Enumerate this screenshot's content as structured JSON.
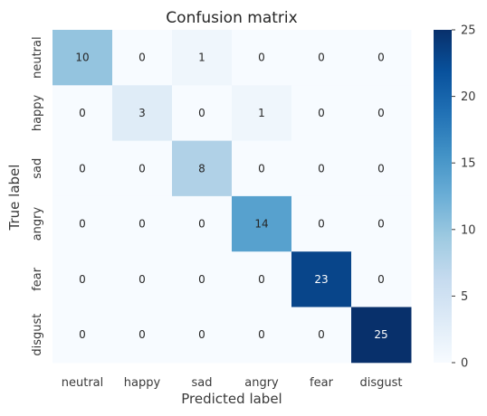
{
  "chart_data": {
    "type": "heatmap",
    "title": "Confusion matrix",
    "xlabel": "Predicted label",
    "ylabel": "True label",
    "x_categories": [
      "neutral",
      "happy",
      "sad",
      "angry",
      "fear",
      "disgust"
    ],
    "y_categories": [
      "neutral",
      "happy",
      "sad",
      "angry",
      "fear",
      "disgust"
    ],
    "values": [
      [
        10,
        0,
        1,
        0,
        0,
        0
      ],
      [
        0,
        3,
        0,
        1,
        0,
        0
      ],
      [
        0,
        0,
        8,
        0,
        0,
        0
      ],
      [
        0,
        0,
        0,
        14,
        0,
        0
      ],
      [
        0,
        0,
        0,
        0,
        23,
        0
      ],
      [
        0,
        0,
        0,
        0,
        0,
        25
      ]
    ],
    "colorbar": {
      "range": [
        0,
        25
      ],
      "ticks": [
        0,
        5,
        10,
        15,
        20,
        25
      ]
    },
    "colormap": "Blues",
    "colors": {
      "low": "#f7fbff",
      "high": "#08306b"
    }
  }
}
